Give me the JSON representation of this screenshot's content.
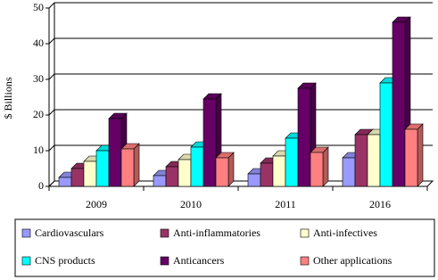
{
  "chart_data": {
    "type": "bar3d",
    "y_label": "$ Billions",
    "categories": [
      "2009",
      "2010",
      "2011",
      "2016"
    ],
    "series": [
      {
        "name": "Cardiovasculars",
        "color": "#9999ff",
        "values": [
          2.5,
          3,
          3.5,
          8
        ]
      },
      {
        "name": "Anti-inflammatories",
        "color": "#993366",
        "values": [
          5,
          5.5,
          6.5,
          14.5
        ]
      },
      {
        "name": "Anti-infectives",
        "color": "#ffffcc",
        "values": [
          7,
          7.5,
          8.5,
          14.5
        ]
      },
      {
        "name": "CNS products",
        "color": "#00ffff",
        "values": [
          10,
          11,
          13.5,
          29
        ]
      },
      {
        "name": "Anticancers",
        "color": "#660066",
        "values": [
          19,
          24.5,
          27.5,
          46
        ]
      },
      {
        "name": "Other applications",
        "color": "#ff8080",
        "values": [
          10.5,
          8,
          9.5,
          16
        ]
      }
    ],
    "ylim": [
      0,
      50
    ],
    "yticks": [
      0,
      10,
      20,
      30,
      40,
      50
    ],
    "grid": true
  }
}
